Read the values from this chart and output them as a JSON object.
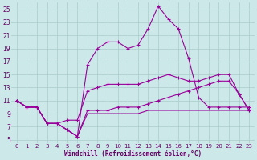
{
  "xlabel": "Windchill (Refroidissement éolien,°C)",
  "bg_color": "#cce8e8",
  "grid_color": "#aacccc",
  "line_color": "#990099",
  "xlim_min": -0.5,
  "xlim_max": 23.5,
  "ylim_min": 4.5,
  "ylim_max": 26.0,
  "xticks": [
    0,
    1,
    2,
    3,
    4,
    5,
    6,
    7,
    8,
    9,
    10,
    11,
    12,
    13,
    14,
    15,
    16,
    17,
    18,
    19,
    20,
    21,
    22,
    23
  ],
  "yticks": [
    5,
    7,
    9,
    11,
    13,
    15,
    17,
    19,
    21,
    23,
    25
  ],
  "lineA_x": [
    0,
    1,
    2,
    3,
    4,
    5,
    6,
    7,
    8,
    9,
    10,
    11,
    12,
    13,
    14,
    15,
    16,
    17,
    18,
    19,
    20,
    21,
    22,
    23
  ],
  "lineA_y": [
    11,
    10,
    10,
    7.5,
    7.5,
    6.5,
    5.5,
    16.5,
    19,
    20,
    20,
    19,
    19.5,
    22,
    25.5,
    23.5,
    22,
    17.5,
    11.5,
    10,
    10,
    10,
    10,
    10
  ],
  "lineB_x": [
    0,
    1,
    2,
    3,
    4,
    5,
    6,
    7,
    8,
    9,
    10,
    11,
    12,
    13,
    14,
    15,
    16,
    17,
    18,
    19,
    20,
    21,
    22,
    23
  ],
  "lineB_y": [
    11,
    10,
    10,
    7.5,
    7.5,
    8,
    8,
    12.5,
    13,
    13.5,
    13.5,
    13.5,
    13.5,
    14,
    14.5,
    15,
    14.5,
    14,
    14,
    14.5,
    15,
    15,
    12,
    9.5
  ],
  "lineC_x": [
    0,
    1,
    2,
    3,
    4,
    5,
    6,
    7,
    8,
    9,
    10,
    11,
    12,
    13,
    14,
    15,
    16,
    17,
    18,
    19,
    20,
    21,
    22,
    23
  ],
  "lineC_y": [
    11,
    10,
    10,
    7.5,
    7.5,
    6.5,
    5.5,
    9.5,
    9.5,
    9.5,
    10,
    10,
    10,
    10.5,
    11,
    11.5,
    12,
    12.5,
    13,
    13.5,
    14,
    14,
    12,
    9.5
  ],
  "lineD_x": [
    0,
    1,
    2,
    3,
    4,
    5,
    6,
    7,
    8,
    9,
    10,
    11,
    12,
    13,
    14,
    15,
    16,
    17,
    18,
    19,
    20,
    21,
    22,
    23
  ],
  "lineD_y": [
    11,
    10,
    10,
    7.5,
    7.5,
    6.5,
    5.5,
    9,
    9,
    9,
    9,
    9,
    9,
    9.5,
    9.5,
    9.5,
    9.5,
    9.5,
    9.5,
    9.5,
    9.5,
    9.5,
    9.5,
    9.5
  ]
}
